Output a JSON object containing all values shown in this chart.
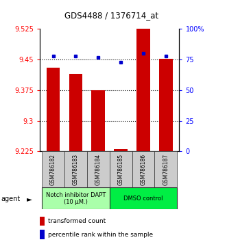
{
  "title": "GDS4488 / 1376714_at",
  "samples": [
    "GSM786182",
    "GSM786183",
    "GSM786184",
    "GSM786185",
    "GSM786186",
    "GSM786187"
  ],
  "red_values": [
    9.43,
    9.415,
    9.375,
    9.23,
    9.525,
    9.452
  ],
  "blue_values": [
    78,
    78,
    77,
    73,
    80,
    78
  ],
  "ylim_left": [
    9.225,
    9.525
  ],
  "ylim_right": [
    0,
    100
  ],
  "yticks_left": [
    9.225,
    9.3,
    9.375,
    9.45,
    9.525
  ],
  "yticks_right": [
    0,
    25,
    50,
    75,
    100
  ],
  "ytick_labels_left": [
    "9.225",
    "9.3",
    "9.375",
    "9.45",
    "9.525"
  ],
  "ytick_labels_right": [
    "0",
    "25",
    "50",
    "75",
    "100%"
  ],
  "hlines": [
    9.3,
    9.375,
    9.45
  ],
  "bar_color": "#cc0000",
  "dot_color": "#0000cc",
  "bar_width": 0.6,
  "agent_groups": [
    {
      "label": "Notch inhibitor DAPT\n(10 μM.)",
      "indices": [
        0,
        1,
        2
      ],
      "color": "#aaffaa"
    },
    {
      "label": "DMSO control",
      "indices": [
        3,
        4,
        5
      ],
      "color": "#00ee44"
    }
  ],
  "legend_items": [
    {
      "color": "#cc0000",
      "label": "transformed count"
    },
    {
      "color": "#0000cc",
      "label": "percentile rank within the sample"
    }
  ],
  "agent_label": "agent",
  "background_color": "#ffffff",
  "plot_bg": "#ffffff",
  "sample_box_color": "#cccccc",
  "agent_label_arrow": "►"
}
